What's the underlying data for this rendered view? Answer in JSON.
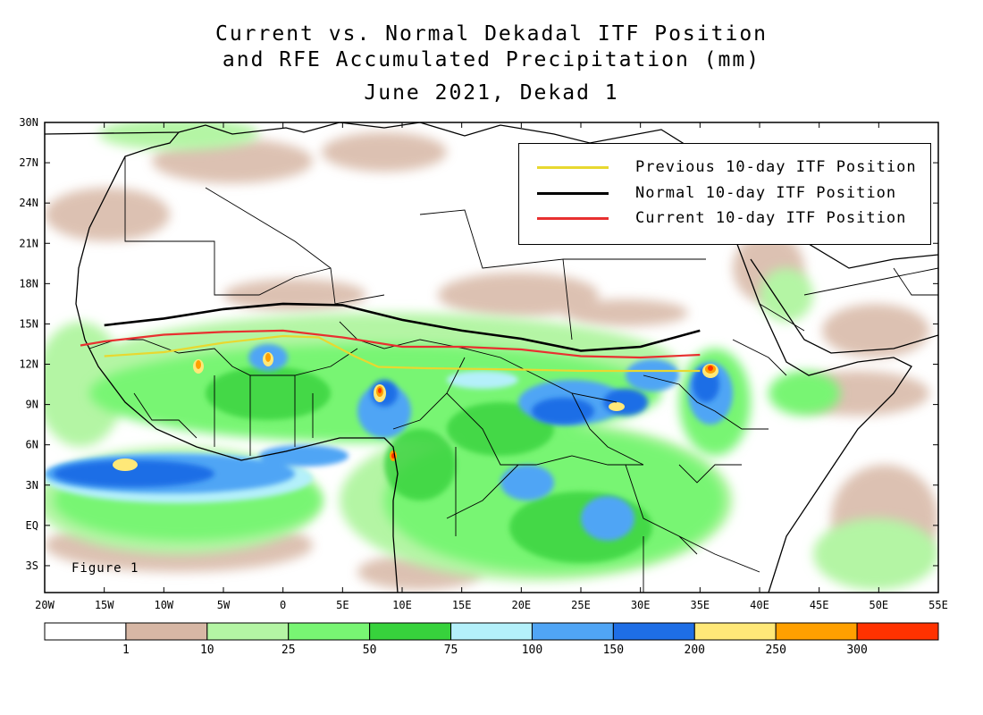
{
  "title": {
    "line1": "Current vs. Normal Dekadal ITF Position",
    "line2": "and RFE Accumulated Precipitation (mm)",
    "line3": "June 2021, Dekad 1"
  },
  "figure_label": "Figure 1",
  "axes": {
    "lat_labels": [
      "30N",
      "27N",
      "24N",
      "21N",
      "18N",
      "15N",
      "12N",
      "9N",
      "6N",
      "3N",
      "EQ",
      "3S"
    ],
    "lat_values": [
      30,
      27,
      24,
      21,
      18,
      15,
      12,
      9,
      6,
      3,
      0,
      -3
    ],
    "lon_labels": [
      "20W",
      "15W",
      "10W",
      "5W",
      "0",
      "5E",
      "10E",
      "15E",
      "20E",
      "25E",
      "30E",
      "35E",
      "40E",
      "45E",
      "50E",
      "55E"
    ],
    "lon_values": [
      -20,
      -15,
      -10,
      -5,
      0,
      5,
      10,
      15,
      20,
      25,
      30,
      35,
      40,
      45,
      50,
      55
    ],
    "lon_range": [
      -20,
      55
    ],
    "lat_range": [
      -5,
      30
    ]
  },
  "itf_legend": [
    {
      "label": "Previous 10-day ITF Position",
      "color": "#e8d830"
    },
    {
      "label": "Normal 10-day ITF Position",
      "color": "#000000"
    },
    {
      "label": "Current 10-day ITF Position",
      "color": "#e83030"
    }
  ],
  "itf_lines": {
    "previous": [
      [
        -15,
        12.6
      ],
      [
        -10,
        12.9
      ],
      [
        -5,
        13.6
      ],
      [
        0,
        14.1
      ],
      [
        3,
        14.0
      ],
      [
        6,
        12.6
      ],
      [
        8,
        11.8
      ],
      [
        12,
        11.7
      ],
      [
        20,
        11.6
      ],
      [
        25,
        11.5
      ],
      [
        30,
        11.5
      ],
      [
        35,
        11.5
      ]
    ],
    "normal": [
      [
        -15,
        14.9
      ],
      [
        -10,
        15.4
      ],
      [
        -5,
        16.1
      ],
      [
        0,
        16.5
      ],
      [
        5,
        16.4
      ],
      [
        10,
        15.3
      ],
      [
        15,
        14.5
      ],
      [
        20,
        13.9
      ],
      [
        25,
        13.0
      ],
      [
        30,
        13.3
      ],
      [
        35,
        14.5
      ]
    ],
    "current": [
      [
        -17,
        13.4
      ],
      [
        -15,
        13.7
      ],
      [
        -10,
        14.2
      ],
      [
        -5,
        14.4
      ],
      [
        0,
        14.5
      ],
      [
        5,
        14.0
      ],
      [
        10,
        13.3
      ],
      [
        15,
        13.3
      ],
      [
        20,
        13.1
      ],
      [
        25,
        12.6
      ],
      [
        30,
        12.5
      ],
      [
        35,
        12.7
      ]
    ]
  },
  "colorbar": {
    "colors": [
      "#ffffff",
      "#d7b7a5",
      "#b4f5a4",
      "#78f573",
      "#37d23c",
      "#b4f0fa",
      "#50a5f5",
      "#1e6ee6",
      "#ffe878",
      "#ffa000",
      "#ff3200"
    ],
    "tick_labels": [
      "1",
      "10",
      "25",
      "50",
      "75",
      "100",
      "150",
      "200",
      "250",
      "300"
    ]
  }
}
